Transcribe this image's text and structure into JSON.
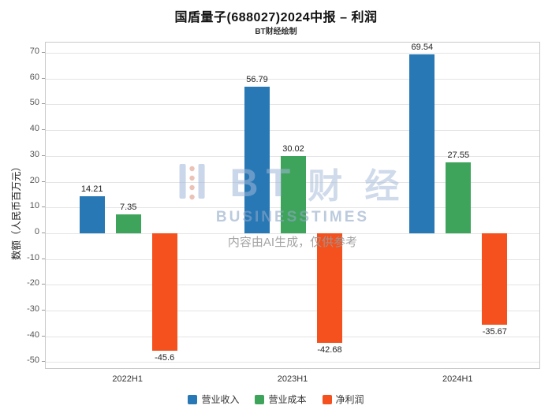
{
  "header": {
    "title": "国盾量子(688027)2024中报 – 利润",
    "subtitle": "BT财经绘制"
  },
  "watermark": {
    "bt": "BT",
    "cn": "财 经",
    "en": "BUSINESSTIMES",
    "ai_note": "内容由AI生成，仅供参考"
  },
  "chart_data": {
    "type": "bar",
    "title": "国盾量子(688027)2024中报 – 利润",
    "subtitle": "BT财经绘制",
    "categories": [
      "2022H1",
      "2023H1",
      "2024H1"
    ],
    "series": [
      {
        "name": "营业收入",
        "color": "#2878b5",
        "values": [
          14.21,
          56.79,
          69.54
        ]
      },
      {
        "name": "营业成本",
        "color": "#3fa45b",
        "values": [
          7.35,
          30.02,
          27.55
        ]
      },
      {
        "name": "净利润",
        "color": "#f4511e",
        "values": [
          -45.6,
          -42.68,
          -35.67
        ]
      }
    ],
    "xlabel": "",
    "ylabel": "数额（人民币百万元）",
    "ylim": [
      -53,
      74
    ],
    "yticks": [
      70,
      60,
      50,
      40,
      30,
      20,
      10,
      0,
      -10,
      -20,
      -30,
      -40,
      -50
    ],
    "grid": true,
    "legend_position": "bottom"
  }
}
